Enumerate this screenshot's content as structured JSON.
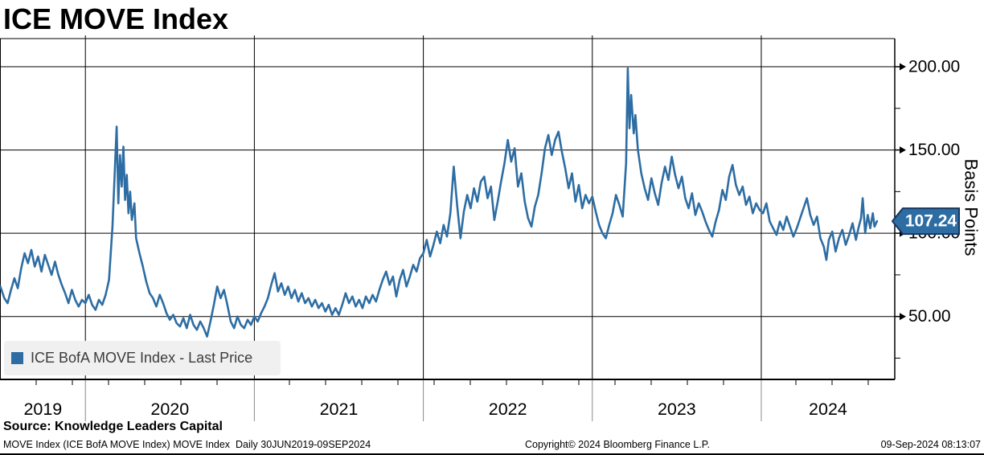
{
  "title": "ICE MOVE Index",
  "legend": {
    "label": "ICE BofA MOVE Index - Last Price",
    "swatch_color": "#2d6da3"
  },
  "source": "Source: Knowledge Leaders Capital",
  "footer": {
    "left": "MOVE Index (ICE BofA MOVE Index) MOVE Index  Daily 30JUN2019-09SEP2024",
    "center": "Copyright© 2024 Bloomberg Finance L.P.",
    "right": "09-Sep-2024 08:13:07"
  },
  "chart_data": {
    "type": "line",
    "title": "ICE MOVE Index",
    "ylabel": "Basis Points",
    "x_unit": "decimal_year",
    "grid": true,
    "legend_position": "bottom-left",
    "xlim": [
      2019.497,
      2024.79
    ],
    "ylim": [
      12.2,
      216.9
    ],
    "y_major_ticks": [
      50,
      100,
      150,
      200
    ],
    "y_major_tick_labels": [
      "50.00",
      "100.00",
      "150.00",
      "200.00"
    ],
    "y_minor_ticks": [
      25,
      75,
      125,
      175
    ],
    "x_gridlines": [
      2020,
      2021,
      2022,
      2023,
      2024
    ],
    "x_tick_labels": [
      "2019",
      "2020",
      "2021",
      "2022",
      "2023",
      "2024"
    ],
    "line_color": "#2d6da3",
    "badge_border_color": "#17375e",
    "last_price": "107.24",
    "last_price_value": 107.24,
    "series": [
      {
        "name": "ICE BofA MOVE Index - Last Price",
        "points": [
          [
            2019.497,
            68
          ],
          [
            2019.52,
            61
          ],
          [
            2019.54,
            58
          ],
          [
            2019.56,
            66
          ],
          [
            2019.58,
            73
          ],
          [
            2019.6,
            67
          ],
          [
            2019.62,
            79
          ],
          [
            2019.64,
            88
          ],
          [
            2019.66,
            82
          ],
          [
            2019.68,
            90
          ],
          [
            2019.7,
            80
          ],
          [
            2019.72,
            86
          ],
          [
            2019.74,
            77
          ],
          [
            2019.76,
            87
          ],
          [
            2019.78,
            81
          ],
          [
            2019.8,
            75
          ],
          [
            2019.82,
            83
          ],
          [
            2019.84,
            75
          ],
          [
            2019.86,
            69
          ],
          [
            2019.88,
            64
          ],
          [
            2019.9,
            58
          ],
          [
            2019.92,
            66
          ],
          [
            2019.94,
            60
          ],
          [
            2019.96,
            56
          ],
          [
            2019.98,
            60
          ],
          [
            2020.0,
            58
          ],
          [
            2020.02,
            63
          ],
          [
            2020.04,
            57
          ],
          [
            2020.06,
            54
          ],
          [
            2020.08,
            60
          ],
          [
            2020.1,
            57
          ],
          [
            2020.12,
            63
          ],
          [
            2020.14,
            72
          ],
          [
            2020.16,
            104
          ],
          [
            2020.17,
            128
          ],
          [
            2020.185,
            164
          ],
          [
            2020.195,
            118
          ],
          [
            2020.205,
            147
          ],
          [
            2020.215,
            128
          ],
          [
            2020.225,
            152
          ],
          [
            2020.235,
            120
          ],
          [
            2020.245,
            135
          ],
          [
            2020.255,
            112
          ],
          [
            2020.265,
            125
          ],
          [
            2020.275,
            108
          ],
          [
            2020.29,
            118
          ],
          [
            2020.3,
            97
          ],
          [
            2020.32,
            88
          ],
          [
            2020.34,
            80
          ],
          [
            2020.36,
            71
          ],
          [
            2020.38,
            64
          ],
          [
            2020.4,
            61
          ],
          [
            2020.42,
            56
          ],
          [
            2020.44,
            63
          ],
          [
            2020.46,
            58
          ],
          [
            2020.48,
            52
          ],
          [
            2020.5,
            48
          ],
          [
            2020.52,
            51
          ],
          [
            2020.54,
            46
          ],
          [
            2020.56,
            44
          ],
          [
            2020.58,
            49
          ],
          [
            2020.6,
            43
          ],
          [
            2020.62,
            51
          ],
          [
            2020.64,
            45
          ],
          [
            2020.66,
            42
          ],
          [
            2020.68,
            47
          ],
          [
            2020.7,
            43
          ],
          [
            2020.72,
            38
          ],
          [
            2020.74,
            47
          ],
          [
            2020.76,
            57
          ],
          [
            2020.78,
            68
          ],
          [
            2020.8,
            61
          ],
          [
            2020.82,
            66
          ],
          [
            2020.84,
            57
          ],
          [
            2020.86,
            47
          ],
          [
            2020.88,
            43
          ],
          [
            2020.9,
            50
          ],
          [
            2020.92,
            45
          ],
          [
            2020.94,
            43
          ],
          [
            2020.96,
            48
          ],
          [
            2020.98,
            45
          ],
          [
            2021.0,
            50
          ],
          [
            2021.02,
            47
          ],
          [
            2021.04,
            52
          ],
          [
            2021.06,
            56
          ],
          [
            2021.08,
            61
          ],
          [
            2021.1,
            69
          ],
          [
            2021.12,
            76
          ],
          [
            2021.14,
            65
          ],
          [
            2021.16,
            70
          ],
          [
            2021.18,
            63
          ],
          [
            2021.2,
            68
          ],
          [
            2021.22,
            61
          ],
          [
            2021.24,
            66
          ],
          [
            2021.26,
            59
          ],
          [
            2021.28,
            64
          ],
          [
            2021.3,
            58
          ],
          [
            2021.32,
            61
          ],
          [
            2021.34,
            56
          ],
          [
            2021.36,
            60
          ],
          [
            2021.38,
            55
          ],
          [
            2021.4,
            58
          ],
          [
            2021.42,
            53
          ],
          [
            2021.44,
            57
          ],
          [
            2021.46,
            51
          ],
          [
            2021.48,
            55
          ],
          [
            2021.5,
            51
          ],
          [
            2021.52,
            57
          ],
          [
            2021.54,
            64
          ],
          [
            2021.56,
            58
          ],
          [
            2021.58,
            62
          ],
          [
            2021.6,
            56
          ],
          [
            2021.62,
            60
          ],
          [
            2021.64,
            55
          ],
          [
            2021.66,
            62
          ],
          [
            2021.68,
            58
          ],
          [
            2021.7,
            63
          ],
          [
            2021.72,
            59
          ],
          [
            2021.74,
            66
          ],
          [
            2021.76,
            72
          ],
          [
            2021.78,
            77
          ],
          [
            2021.8,
            69
          ],
          [
            2021.82,
            74
          ],
          [
            2021.84,
            62
          ],
          [
            2021.86,
            72
          ],
          [
            2021.88,
            78
          ],
          [
            2021.9,
            68
          ],
          [
            2021.92,
            74
          ],
          [
            2021.94,
            81
          ],
          [
            2021.96,
            77
          ],
          [
            2021.98,
            85
          ],
          [
            2022.0,
            88
          ],
          [
            2022.02,
            96
          ],
          [
            2022.04,
            86
          ],
          [
            2022.06,
            93
          ],
          [
            2022.08,
            101
          ],
          [
            2022.1,
            94
          ],
          [
            2022.12,
            105
          ],
          [
            2022.14,
            98
          ],
          [
            2022.16,
            112
          ],
          [
            2022.18,
            140
          ],
          [
            2022.2,
            117
          ],
          [
            2022.22,
            97
          ],
          [
            2022.24,
            113
          ],
          [
            2022.26,
            123
          ],
          [
            2022.28,
            115
          ],
          [
            2022.3,
            127
          ],
          [
            2022.32,
            119
          ],
          [
            2022.34,
            131
          ],
          [
            2022.36,
            134
          ],
          [
            2022.38,
            121
          ],
          [
            2022.4,
            128
          ],
          [
            2022.42,
            108
          ],
          [
            2022.44,
            119
          ],
          [
            2022.46,
            131
          ],
          [
            2022.48,
            142
          ],
          [
            2022.5,
            156
          ],
          [
            2022.52,
            143
          ],
          [
            2022.54,
            151
          ],
          [
            2022.56,
            128
          ],
          [
            2022.58,
            136
          ],
          [
            2022.6,
            119
          ],
          [
            2022.62,
            109
          ],
          [
            2022.64,
            104
          ],
          [
            2022.66,
            116
          ],
          [
            2022.68,
            123
          ],
          [
            2022.7,
            136
          ],
          [
            2022.72,
            151
          ],
          [
            2022.74,
            159
          ],
          [
            2022.76,
            147
          ],
          [
            2022.78,
            156
          ],
          [
            2022.8,
            161
          ],
          [
            2022.82,
            149
          ],
          [
            2022.84,
            139
          ],
          [
            2022.86,
            127
          ],
          [
            2022.88,
            136
          ],
          [
            2022.9,
            119
          ],
          [
            2022.92,
            129
          ],
          [
            2022.94,
            115
          ],
          [
            2022.96,
            123
          ],
          [
            2022.98,
            118
          ],
          [
            2023.0,
            122
          ],
          [
            2023.02,
            113
          ],
          [
            2023.04,
            105
          ],
          [
            2023.06,
            100
          ],
          [
            2023.08,
            97
          ],
          [
            2023.1,
            105
          ],
          [
            2023.12,
            112
          ],
          [
            2023.14,
            123
          ],
          [
            2023.16,
            117
          ],
          [
            2023.18,
            110
          ],
          [
            2023.2,
            142
          ],
          [
            2023.21,
            199
          ],
          [
            2023.22,
            163
          ],
          [
            2023.23,
            183
          ],
          [
            2023.245,
            160
          ],
          [
            2023.255,
            171
          ],
          [
            2023.27,
            150
          ],
          [
            2023.29,
            136
          ],
          [
            2023.31,
            127
          ],
          [
            2023.33,
            120
          ],
          [
            2023.35,
            133
          ],
          [
            2023.37,
            124
          ],
          [
            2023.39,
            117
          ],
          [
            2023.41,
            130
          ],
          [
            2023.43,
            140
          ],
          [
            2023.45,
            132
          ],
          [
            2023.47,
            146
          ],
          [
            2023.49,
            135
          ],
          [
            2023.51,
            127
          ],
          [
            2023.53,
            134
          ],
          [
            2023.55,
            121
          ],
          [
            2023.57,
            115
          ],
          [
            2023.59,
            124
          ],
          [
            2023.61,
            111
          ],
          [
            2023.63,
            118
          ],
          [
            2023.65,
            113
          ],
          [
            2023.67,
            107
          ],
          [
            2023.69,
            102
          ],
          [
            2023.71,
            98
          ],
          [
            2023.73,
            107
          ],
          [
            2023.75,
            114
          ],
          [
            2023.77,
            126
          ],
          [
            2023.79,
            120
          ],
          [
            2023.81,
            134
          ],
          [
            2023.83,
            141
          ],
          [
            2023.85,
            129
          ],
          [
            2023.87,
            123
          ],
          [
            2023.89,
            128
          ],
          [
            2023.91,
            117
          ],
          [
            2023.93,
            122
          ],
          [
            2023.95,
            112
          ],
          [
            2023.97,
            118
          ],
          [
            2023.99,
            114
          ],
          [
            2024.01,
            112
          ],
          [
            2024.03,
            118
          ],
          [
            2024.05,
            107
          ],
          [
            2024.07,
            103
          ],
          [
            2024.09,
            99
          ],
          [
            2024.11,
            107
          ],
          [
            2024.13,
            102
          ],
          [
            2024.15,
            110
          ],
          [
            2024.17,
            104
          ],
          [
            2024.19,
            98
          ],
          [
            2024.21,
            103
          ],
          [
            2024.23,
            109
          ],
          [
            2024.25,
            115
          ],
          [
            2024.27,
            121
          ],
          [
            2024.29,
            111
          ],
          [
            2024.31,
            105
          ],
          [
            2024.33,
            110
          ],
          [
            2024.35,
            97
          ],
          [
            2024.37,
            92
          ],
          [
            2024.385,
            84
          ],
          [
            2024.4,
            96
          ],
          [
            2024.42,
            101
          ],
          [
            2024.44,
            89
          ],
          [
            2024.46,
            97
          ],
          [
            2024.48,
            102
          ],
          [
            2024.5,
            93
          ],
          [
            2024.52,
            99
          ],
          [
            2024.54,
            106
          ],
          [
            2024.56,
            96
          ],
          [
            2024.575,
            103
          ],
          [
            2024.59,
            109
          ],
          [
            2024.6,
            121
          ],
          [
            2024.615,
            100
          ],
          [
            2024.63,
            111
          ],
          [
            2024.645,
            103
          ],
          [
            2024.66,
            112
          ],
          [
            2024.67,
            104
          ],
          [
            2024.685,
            107.24
          ]
        ]
      }
    ]
  }
}
